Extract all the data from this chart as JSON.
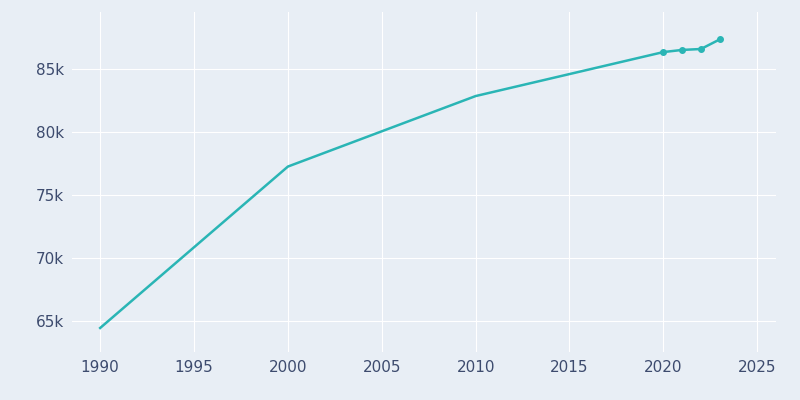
{
  "years": [
    1990,
    2000,
    2010,
    2020,
    2021,
    2022,
    2023
  ],
  "population": [
    64407,
    77226,
    82825,
    86318,
    86488,
    86561,
    87321
  ],
  "line_color": "#2ab5b5",
  "background_color": "#e8eef5",
  "grid_color": "#ffffff",
  "text_color": "#3d4b6e",
  "xlim": [
    1988.5,
    2026
  ],
  "ylim": [
    62500,
    89500
  ],
  "xticks": [
    1990,
    1995,
    2000,
    2005,
    2010,
    2015,
    2020,
    2025
  ],
  "yticks": [
    65000,
    70000,
    75000,
    80000,
    85000
  ],
  "figsize": [
    8.0,
    4.0
  ],
  "dpi": 100
}
